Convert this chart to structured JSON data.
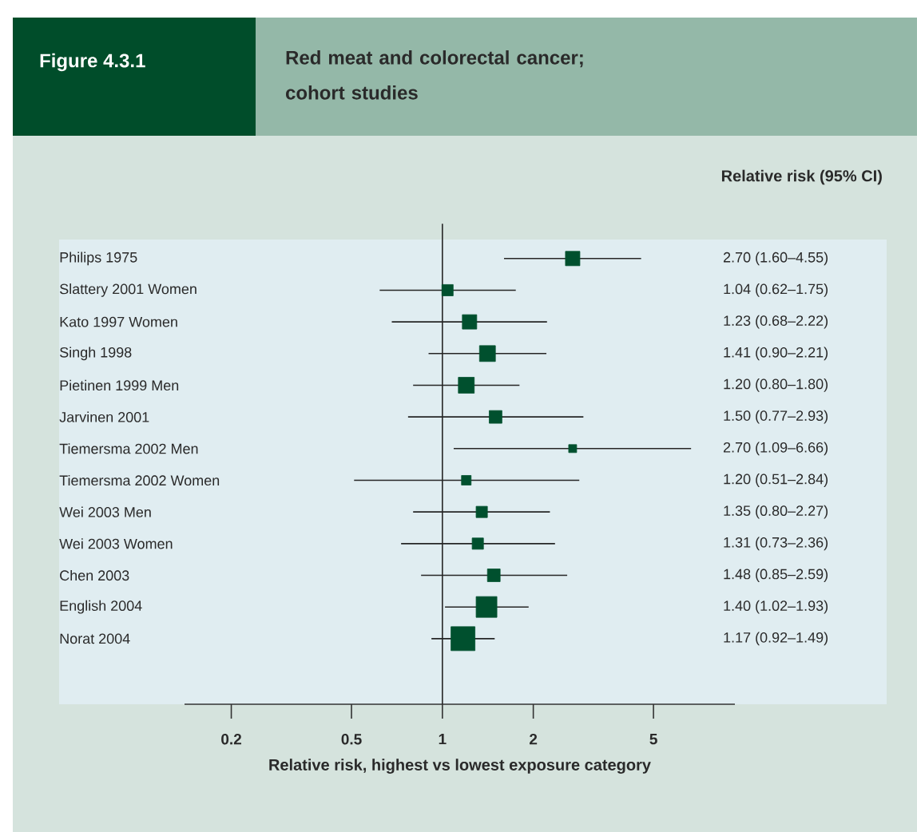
{
  "chart_data": {
    "type": "scatter",
    "title": "Figure 4.3.1",
    "subtitle": "Red meat and colorectal cancer; cohort studies",
    "xlabel": "Relative risk, highest vs lowest exposure category",
    "annotations": [
      "Relative risk (95% CI)"
    ],
    "orientation": "horizontal",
    "color": "#00502e",
    "marker": "square",
    "log": "x",
    "xlim": [
      0.14,
      9.3
    ],
    "xticks": [
      0.2,
      0.5,
      1,
      2,
      5
    ],
    "ref_lines": [
      {
        "axis": "x",
        "value": 1
      }
    ],
    "categories": [
      "Philips 1975",
      "Slattery 2001 Women",
      "Kato 1997 Women",
      "Singh 1998",
      "Pietinen 1999 Men",
      "Jarvinen 2001",
      "Tiemersma 2002 Men",
      "Tiemersma 2002 Women",
      "Wei 2003 Men",
      "Wei 2003 Women",
      "Chen 2003",
      "English 2004",
      "Norat 2004"
    ],
    "values": [
      2.7,
      1.04,
      1.23,
      1.41,
      1.2,
      1.5,
      2.7,
      1.2,
      1.35,
      1.31,
      1.48,
      1.4,
      1.17
    ],
    "errors": [
      [
        1.6,
        4.55
      ],
      [
        0.62,
        1.75
      ],
      [
        0.68,
        2.22
      ],
      [
        0.9,
        2.21
      ],
      [
        0.8,
        1.8
      ],
      [
        0.77,
        2.93
      ],
      [
        1.09,
        6.66
      ],
      [
        0.51,
        2.84
      ],
      [
        0.8,
        2.27
      ],
      [
        0.73,
        2.36
      ],
      [
        0.85,
        2.59
      ],
      [
        1.02,
        1.93
      ],
      [
        0.92,
        1.49
      ]
    ],
    "sizes": [
      0.36,
      0.22,
      0.36,
      0.44,
      0.44,
      0.28,
      0.11,
      0.16,
      0.22,
      0.22,
      0.28,
      0.75,
      1
    ],
    "value_labels": [
      "2.70 (1.60–4.55)",
      "1.04 (0.62–1.75)",
      "1.23 (0.68–2.22)",
      "1.41 (0.90–2.21)",
      "1.20 (0.80–1.80)",
      "1.50 (0.77–2.93)",
      "2.70 (1.09–6.66)",
      "1.20 (0.51–2.84)",
      "1.35 (0.80–2.27)",
      "1.31 (0.73–2.36)",
      "1.48 (0.85–2.59)",
      "1.40 (1.02–1.93)",
      "1.17 (0.92–1.49)"
    ]
  }
}
